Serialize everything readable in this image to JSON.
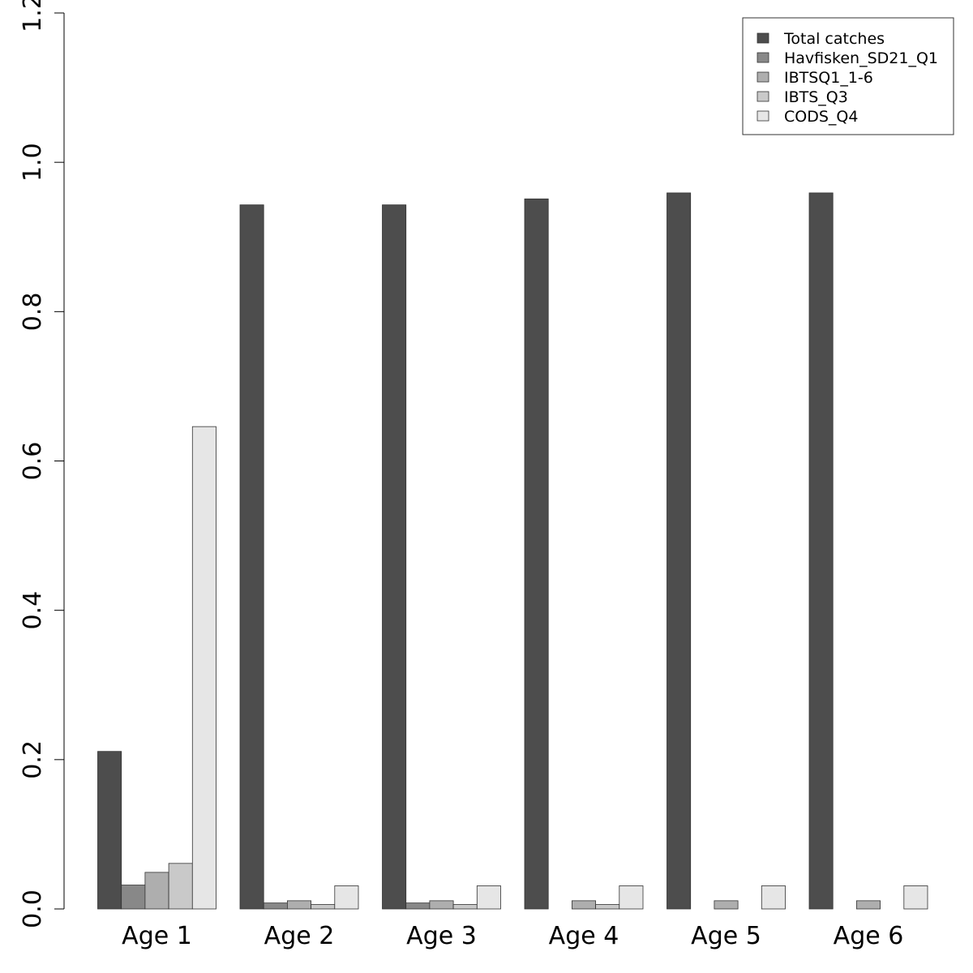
{
  "chart_data": {
    "type": "bar",
    "categories": [
      "Age 1",
      "Age 2",
      "Age 3",
      "Age 4",
      "Age 5",
      "Age 6"
    ],
    "series": [
      {
        "name": "Total catches",
        "color": "#4d4d4d",
        "values": [
          0.211,
          0.943,
          0.943,
          0.951,
          0.959,
          0.959
        ]
      },
      {
        "name": "Havfisken_SD21_Q1",
        "color": "#888888",
        "values": [
          0.032,
          0.008,
          0.008,
          0.0,
          0.0,
          0.0
        ]
      },
      {
        "name": "IBTSQ1_1-6",
        "color": "#aeaeae",
        "values": [
          0.049,
          0.011,
          0.011,
          0.011,
          0.011,
          0.011
        ]
      },
      {
        "name": "IBTS_Q3",
        "color": "#c9c9c9",
        "values": [
          0.061,
          0.006,
          0.006,
          0.006,
          0.0,
          0.0
        ]
      },
      {
        "name": "CODS_Q4",
        "color": "#e6e6e6",
        "values": [
          0.646,
          0.031,
          0.031,
          0.031,
          0.031,
          0.031
        ]
      }
    ],
    "ylim": [
      0,
      1.2
    ],
    "yticks": [
      "0.0",
      "0.2",
      "0.4",
      "0.6",
      "0.8",
      "1.0",
      "1.2"
    ],
    "title": "",
    "xlabel": "",
    "ylabel": "",
    "grid": false,
    "legend": "top-right"
  }
}
